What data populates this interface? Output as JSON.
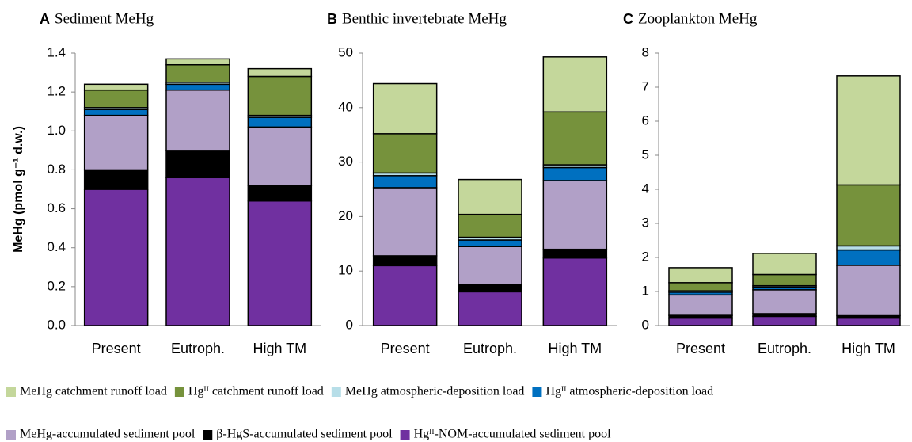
{
  "chart_data": [
    {
      "type": "bar",
      "stacked": true,
      "panel": "A",
      "title": "Sediment MeHg",
      "ylabel": "MeHg (pmol g⁻¹ d.w.)",
      "categories": [
        "Present",
        "Eutroph.",
        "High TM"
      ],
      "series": [
        {
          "values": [
            0.03,
            0.03,
            0.04
          ]
        },
        {
          "values": [
            0.09,
            0.09,
            0.2
          ]
        },
        {
          "values": [
            0.01,
            0.01,
            0.01
          ]
        },
        {
          "values": [
            0.03,
            0.03,
            0.05
          ]
        },
        {
          "values": [
            0.28,
            0.31,
            0.3
          ]
        },
        {
          "values": [
            0.1,
            0.14,
            0.08
          ]
        },
        {
          "values": [
            0.7,
            0.76,
            0.64
          ]
        }
      ],
      "ylim": [
        0,
        1.4
      ],
      "yticks": [
        {
          "value": 0,
          "label": "0.0"
        },
        {
          "value": 0.2,
          "label": "0.2"
        },
        {
          "value": 0.4,
          "label": "0.4"
        },
        {
          "value": 0.6,
          "label": "0.6"
        },
        {
          "value": 0.8,
          "label": "0.8"
        },
        {
          "value": 1,
          "label": "1.0"
        },
        {
          "value": 1.2,
          "label": "1.2"
        },
        {
          "value": 1.4,
          "label": "1.4"
        }
      ]
    },
    {
      "type": "bar",
      "stacked": true,
      "panel": "B",
      "title": "Benthic invertebrate MeHg",
      "categories": [
        "Present",
        "Eutroph.",
        "High TM"
      ],
      "series": [
        {
          "values": [
            9.2,
            6.4,
            10.1
          ]
        },
        {
          "values": [
            7.2,
            4.2,
            9.7
          ]
        },
        {
          "values": [
            0.5,
            0.5,
            0.5
          ]
        },
        {
          "values": [
            2.2,
            1.2,
            2.4
          ]
        },
        {
          "values": [
            12.5,
            7.0,
            12.6
          ]
        },
        {
          "values": [
            1.8,
            1.3,
            1.6
          ]
        },
        {
          "values": [
            11,
            6.2,
            12.4
          ]
        }
      ],
      "ylim": [
        0,
        50
      ],
      "yticks": [
        0,
        10,
        20,
        30,
        40,
        50
      ]
    },
    {
      "type": "bar",
      "stacked": true,
      "panel": "C",
      "title": "Zooplankton MeHg",
      "categories": [
        "Present",
        "Eutroph.",
        "High TM"
      ],
      "series": [
        {
          "values": [
            0.44,
            0.62,
            3.2
          ]
        },
        {
          "values": [
            0.24,
            0.33,
            1.79
          ]
        },
        {
          "values": [
            0.04,
            0.04,
            0.12
          ]
        },
        {
          "values": [
            0.08,
            0.08,
            0.45
          ]
        },
        {
          "values": [
            0.6,
            0.7,
            1.48
          ]
        },
        {
          "values": [
            0.08,
            0.08,
            0.07
          ]
        },
        {
          "values": [
            0.22,
            0.27,
            0.22
          ]
        }
      ],
      "ylim": [
        0,
        8
      ],
      "yticks": [
        0,
        1,
        2,
        3,
        4,
        5,
        6,
        7,
        8
      ]
    }
  ],
  "legend": {
    "items": [
      {
        "name": "MeHg catchment runoff load",
        "color": "#c4d79b"
      },
      {
        "name": "Hgᴵᴵ catchment runoff load",
        "color": "#76923c"
      },
      {
        "name": "MeHg atmospheric-deposition load",
        "color": "#b7dee8"
      },
      {
        "name": "Hgᴵᴵ atmospheric-deposition load",
        "color": "#0070c0"
      },
      {
        "name": "MeHg-accumulated sediment pool",
        "color": "#b1a0c7"
      },
      {
        "name": "β-HgS-accumulated sediment pool",
        "color": "#000000"
      },
      {
        "name": "Hgᴵᴵ-NOM-accumulated sediment pool",
        "color": "#7030a0"
      }
    ]
  }
}
